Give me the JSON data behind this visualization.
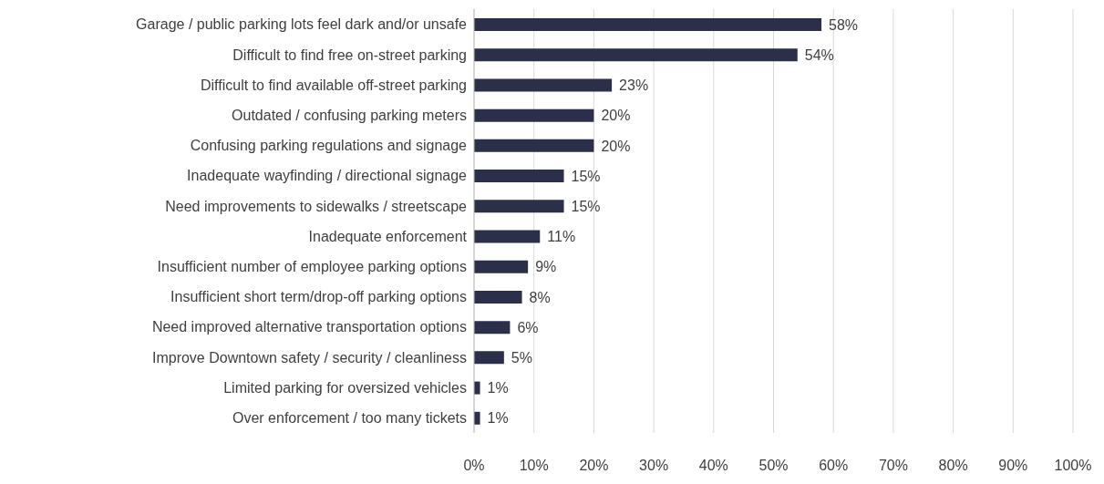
{
  "chart_data": {
    "type": "bar",
    "orientation": "horizontal",
    "categories": [
      "Garage / public parking lots feel dark and/or unsafe",
      "Difficult to find free on-street parking",
      "Difficult to find available off-street parking",
      "Outdated / confusing parking meters",
      "Confusing parking regulations and signage",
      "Inadequate wayfinding / directional signage",
      "Need improvements to sidewalks / streetscape",
      "Inadequate enforcement",
      "Insufficient number of employee parking options",
      "Insufficient short term/drop-off parking options",
      "Need improved alternative transportation options",
      "Improve Downtown safety / security / cleanliness",
      "Limited parking for oversized vehicles",
      "Over enforcement / too many tickets"
    ],
    "values": [
      58,
      54,
      23,
      20,
      20,
      15,
      15,
      11,
      9,
      8,
      6,
      5,
      1,
      1
    ],
    "value_labels": [
      "58%",
      "54%",
      "23%",
      "20%",
      "20%",
      "15%",
      "15%",
      "11%",
      "9%",
      "8%",
      "6%",
      "5%",
      "1%",
      "1%"
    ],
    "color": "#2b2f4a",
    "xlim": [
      0,
      100
    ],
    "xticks": [
      {
        "value": 0,
        "label": "0%"
      },
      {
        "value": 10,
        "label": "10%"
      },
      {
        "value": 20,
        "label": "20%"
      },
      {
        "value": 30,
        "label": "30%"
      },
      {
        "value": 40,
        "label": "40%"
      },
      {
        "value": 50,
        "label": "50%"
      },
      {
        "value": 60,
        "label": "60%"
      },
      {
        "value": 70,
        "label": "70%"
      },
      {
        "value": 80,
        "label": "80%"
      },
      {
        "value": 90,
        "label": "90%"
      },
      {
        "value": 100,
        "label": "100%"
      }
    ],
    "grid": "x",
    "legend": false
  }
}
